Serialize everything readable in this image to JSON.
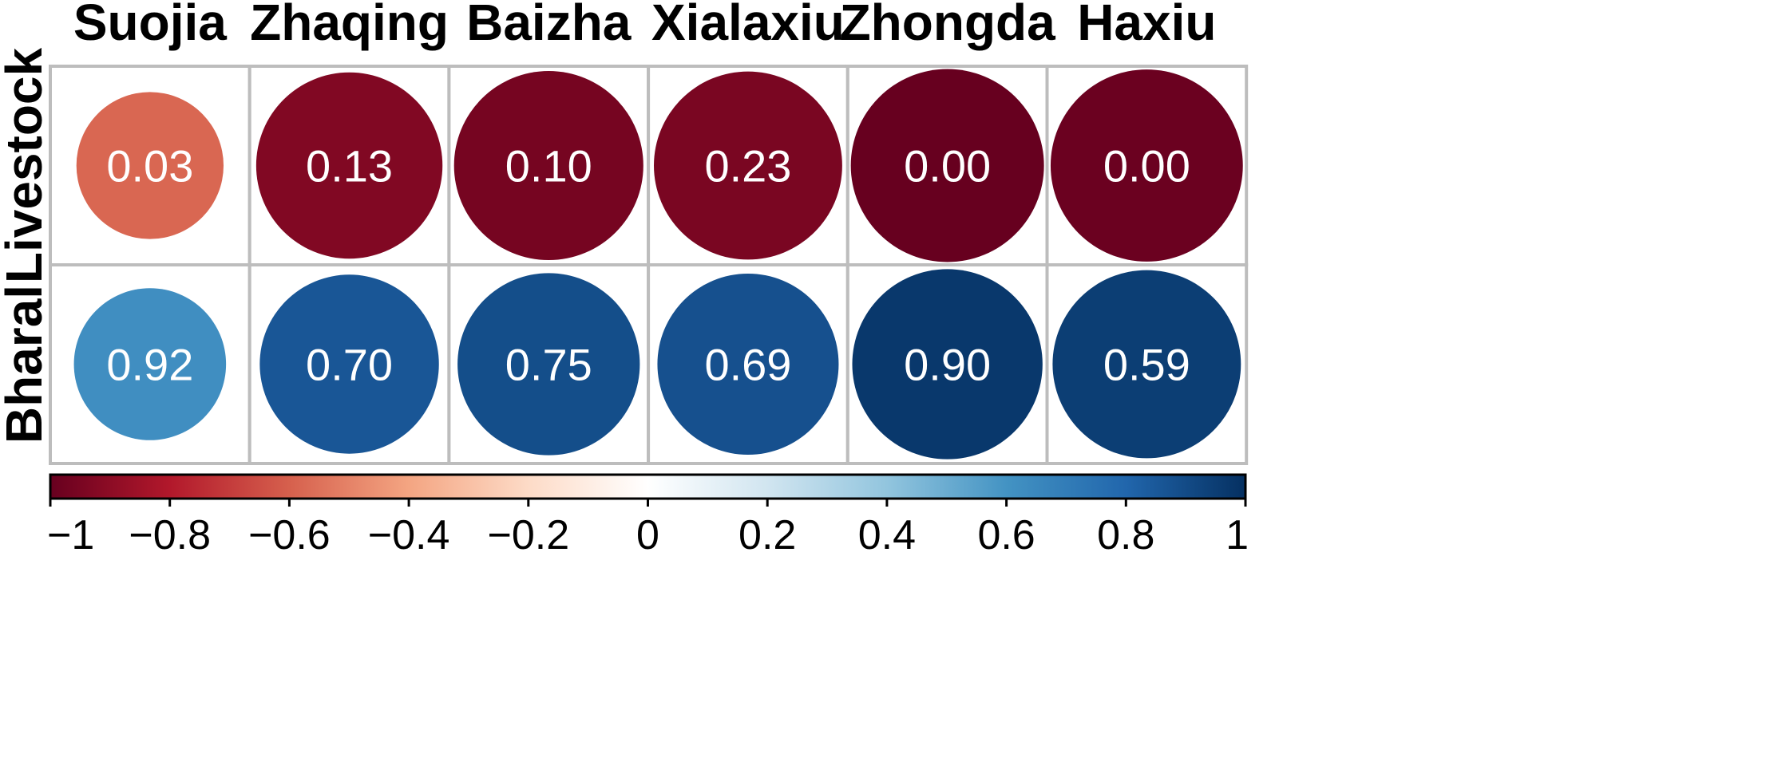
{
  "chart_data": {
    "type": "heatmap",
    "style": "corrplot-circles",
    "columns": [
      "Suojia",
      "Zhaqing",
      "Baizha",
      "Xialaxiu",
      "Zhongda",
      "Haxiu"
    ],
    "rows": [
      "Livestock",
      "Bharal"
    ],
    "cells": [
      [
        {
          "value": -0.58,
          "label": "0.03"
        },
        {
          "value": -0.93,
          "label": "0.13"
        },
        {
          "value": -0.96,
          "label": "0.10"
        },
        {
          "value": -0.95,
          "label": "0.23"
        },
        {
          "value": -1.0,
          "label": "0.00"
        },
        {
          "value": -0.99,
          "label": "0.00"
        }
      ],
      [
        {
          "value": 0.62,
          "label": "0.92"
        },
        {
          "value": 0.86,
          "label": "0.70"
        },
        {
          "value": 0.89,
          "label": "0.75"
        },
        {
          "value": 0.88,
          "label": "0.69"
        },
        {
          "value": 0.97,
          "label": "0.90"
        },
        {
          "value": 0.95,
          "label": "0.59"
        }
      ]
    ],
    "colorbar": {
      "range": [
        -1,
        1
      ],
      "ticks": [
        "−1",
        "−0.8",
        "−0.6",
        "−0.4",
        "−0.2",
        "0",
        "0.2",
        "0.4",
        "0.6",
        "0.8",
        "1"
      ],
      "tick_values": [
        -1,
        -0.8,
        -0.6,
        -0.4,
        -0.2,
        0,
        0.2,
        0.4,
        0.6,
        0.8,
        1
      ],
      "stops": [
        "#67001f",
        "#b2182b",
        "#d6604d",
        "#f4a582",
        "#fddbc7",
        "#ffffff",
        "#d1e5f0",
        "#92c5de",
        "#4393c3",
        "#2166ac",
        "#053061"
      ],
      "placement": "bottom"
    },
    "grid": true
  }
}
